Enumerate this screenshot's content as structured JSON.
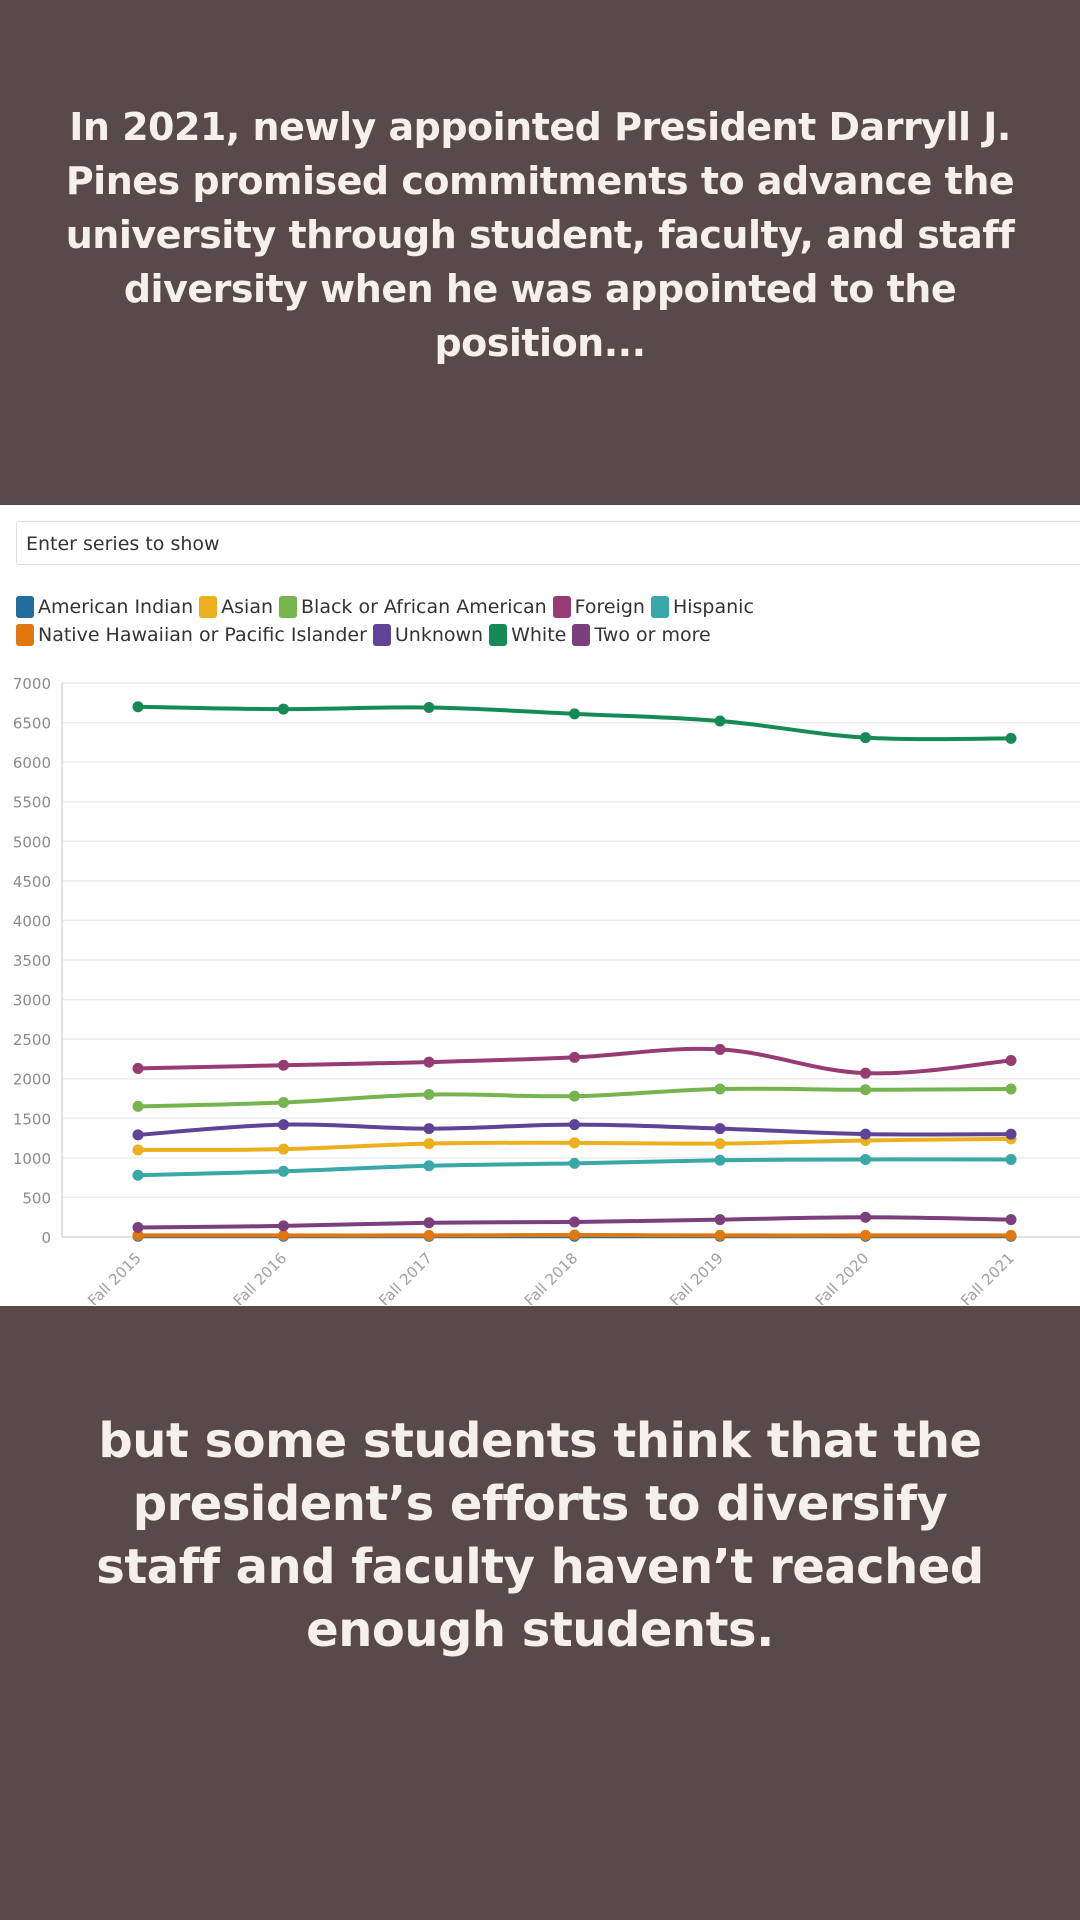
{
  "header_text": "In 2021, newly appointed President Darryll J. Pines promised commitments to advance the university through student, faculty, and staff diversity when he was appointed to the position...",
  "footer_text": "but some students think that the president’s efforts to diversify staff and faculty haven’t reached enough students.",
  "series_input": {
    "placeholder": "Enter series to show"
  },
  "chart_data": {
    "type": "line",
    "title": "",
    "xlabel": "",
    "ylabel": "",
    "categories": [
      "Fall 2015",
      "Fall 2016",
      "Fall 2017",
      "Fall 2018",
      "Fall 2019",
      "Fall 2020",
      "Fall 2021"
    ],
    "ylim": [
      0,
      7000
    ],
    "yticks": [
      0,
      500,
      1000,
      1500,
      2000,
      2500,
      3000,
      3500,
      4000,
      4500,
      5000,
      5500,
      6000,
      6500,
      7000
    ],
    "grid": true,
    "legend_position": "top-left",
    "series": [
      {
        "name": "American Indian",
        "color": "#1f6e9c",
        "values": [
          10,
          10,
          10,
          10,
          10,
          10,
          10
        ]
      },
      {
        "name": "Asian",
        "color": "#ecb01f",
        "values": [
          1100,
          1110,
          1180,
          1190,
          1180,
          1220,
          1240
        ]
      },
      {
        "name": "Black or African American",
        "color": "#76b450",
        "values": [
          1650,
          1700,
          1800,
          1780,
          1870,
          1860,
          1870
        ]
      },
      {
        "name": "Foreign",
        "color": "#963c72",
        "values": [
          2130,
          2170,
          2210,
          2270,
          2370,
          2070,
          2230
        ]
      },
      {
        "name": "Hispanic",
        "color": "#3aa8a6",
        "values": [
          780,
          830,
          900,
          930,
          970,
          980,
          980
        ]
      },
      {
        "name": "Native Hawaiian or Pacific Islander",
        "color": "#e0780f",
        "values": [
          20,
          20,
          20,
          25,
          20,
          20,
          20
        ]
      },
      {
        "name": "Unknown",
        "color": "#5e4396",
        "values": [
          1290,
          1420,
          1370,
          1420,
          1370,
          1300,
          1300
        ]
      },
      {
        "name": "White",
        "color": "#168a56",
        "values": [
          6700,
          6670,
          6690,
          6610,
          6520,
          6310,
          6300
        ]
      },
      {
        "name": "Two or more",
        "color": "#7a3f7c",
        "values": [
          120,
          140,
          180,
          190,
          220,
          250,
          220
        ]
      }
    ]
  }
}
